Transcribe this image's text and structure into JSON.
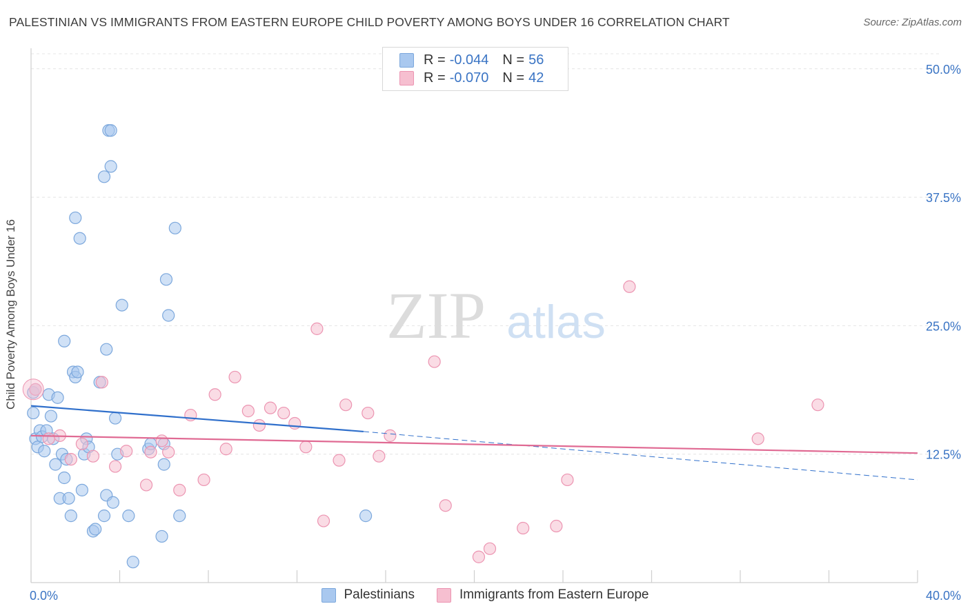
{
  "title": "PALESTINIAN VS IMMIGRANTS FROM EASTERN EUROPE CHILD POVERTY AMONG BOYS UNDER 16 CORRELATION CHART",
  "source": "Source: ZipAtlas.com",
  "watermark": {
    "zip": "ZIP",
    "atlas": "atlas"
  },
  "colors": {
    "blue_fill": "#a9c8ef",
    "blue_stroke": "#7ba7dc",
    "blue_line": "#2f6fcb",
    "pink_fill": "#f6bfd0",
    "pink_stroke": "#ec94b1",
    "pink_line": "#e06a93",
    "tick_color": "#3a74c4"
  },
  "legend_top": [
    {
      "r_label": "R =",
      "r_value": "-0.044",
      "n_label": "N =",
      "n_value": "56",
      "color": "#a9c8ef"
    },
    {
      "r_label": "R =",
      "r_value": "-0.070",
      "n_label": "N =",
      "n_value": "42",
      "color": "#f6bfd0"
    }
  ],
  "chart_data": {
    "type": "scatter",
    "title": "PALESTINIAN VS IMMIGRANTS FROM EASTERN EUROPE CHILD POVERTY AMONG BOYS UNDER 16 CORRELATION CHART",
    "xlabel": "",
    "ylabel": "Child Poverty Among Boys Under 16",
    "xlim": [
      0,
      40
    ],
    "ylim": [
      0,
      52
    ],
    "x_tick_labels": [
      "0.0%",
      "40.0%"
    ],
    "y_ticks": [
      12.5,
      25.0,
      37.5,
      50.0
    ],
    "y_tick_labels": [
      "12.5%",
      "25.0%",
      "37.5%",
      "50.0%"
    ],
    "grid": true,
    "series": [
      {
        "name": "Palestinians",
        "trend": {
          "x": [
            0,
            15.0
          ],
          "y": [
            17.2,
            14.7
          ]
        },
        "trend_dashed": {
          "x": [
            15.0,
            40
          ],
          "y": [
            14.7,
            10.0
          ]
        },
        "points": [
          [
            0.1,
            18.5
          ],
          [
            0.1,
            16.5
          ],
          [
            0.2,
            14.0
          ],
          [
            0.3,
            13.2
          ],
          [
            0.4,
            14.8
          ],
          [
            0.5,
            14.2
          ],
          [
            0.6,
            12.8
          ],
          [
            0.7,
            14.8
          ],
          [
            0.8,
            18.3
          ],
          [
            0.9,
            16.2
          ],
          [
            1.0,
            14.0
          ],
          [
            1.1,
            11.5
          ],
          [
            1.2,
            18.0
          ],
          [
            1.3,
            8.2
          ],
          [
            1.4,
            12.5
          ],
          [
            1.5,
            10.2
          ],
          [
            1.5,
            23.5
          ],
          [
            1.6,
            12.0
          ],
          [
            1.7,
            8.2
          ],
          [
            1.8,
            6.5
          ],
          [
            1.9,
            20.5
          ],
          [
            2.0,
            20.0
          ],
          [
            2.0,
            35.5
          ],
          [
            2.1,
            20.5
          ],
          [
            2.2,
            33.5
          ],
          [
            2.3,
            9.0
          ],
          [
            2.4,
            12.5
          ],
          [
            2.5,
            14.0
          ],
          [
            2.6,
            13.2
          ],
          [
            2.8,
            5.0
          ],
          [
            2.9,
            5.2
          ],
          [
            3.1,
            19.5
          ],
          [
            3.3,
            39.5
          ],
          [
            3.3,
            6.5
          ],
          [
            3.4,
            8.5
          ],
          [
            3.4,
            22.7
          ],
          [
            3.6,
            40.5
          ],
          [
            3.5,
            44.0
          ],
          [
            3.6,
            44.0
          ],
          [
            3.7,
            7.8
          ],
          [
            3.8,
            16.0
          ],
          [
            3.9,
            12.5
          ],
          [
            4.1,
            27.0
          ],
          [
            4.4,
            6.5
          ],
          [
            4.6,
            2.0
          ],
          [
            5.3,
            13.0
          ],
          [
            5.4,
            13.5
          ],
          [
            5.9,
            4.5
          ],
          [
            6.0,
            13.5
          ],
          [
            6.0,
            11.5
          ],
          [
            6.1,
            29.5
          ],
          [
            6.2,
            26.0
          ],
          [
            6.5,
            34.5
          ],
          [
            6.7,
            6.5
          ],
          [
            15.1,
            6.5
          ],
          [
            0.2,
            18.8
          ]
        ]
      },
      {
        "name": "Immigrants from Eastern Europe",
        "trend": {
          "x": [
            0,
            40
          ],
          "y": [
            14.3,
            12.6
          ]
        },
        "points": [
          [
            0.2,
            18.8
          ],
          [
            0.8,
            14.0
          ],
          [
            1.3,
            14.3
          ],
          [
            1.8,
            12.0
          ],
          [
            2.3,
            13.5
          ],
          [
            2.8,
            12.3
          ],
          [
            3.2,
            19.5
          ],
          [
            3.8,
            11.3
          ],
          [
            4.3,
            12.8
          ],
          [
            5.2,
            9.5
          ],
          [
            5.4,
            12.7
          ],
          [
            5.9,
            13.8
          ],
          [
            6.2,
            12.7
          ],
          [
            6.7,
            9.0
          ],
          [
            7.2,
            16.3
          ],
          [
            7.8,
            10.0
          ],
          [
            8.3,
            18.3
          ],
          [
            8.8,
            13.0
          ],
          [
            9.2,
            20.0
          ],
          [
            9.8,
            16.7
          ],
          [
            10.3,
            15.3
          ],
          [
            10.8,
            17.0
          ],
          [
            11.4,
            16.5
          ],
          [
            11.9,
            15.5
          ],
          [
            12.4,
            13.2
          ],
          [
            12.9,
            24.7
          ],
          [
            13.2,
            6.0
          ],
          [
            13.9,
            11.9
          ],
          [
            14.2,
            17.3
          ],
          [
            15.2,
            16.5
          ],
          [
            15.7,
            12.3
          ],
          [
            16.2,
            14.3
          ],
          [
            18.2,
            21.5
          ],
          [
            18.7,
            7.5
          ],
          [
            20.2,
            2.5
          ],
          [
            20.7,
            3.3
          ],
          [
            22.2,
            5.3
          ],
          [
            23.7,
            5.5
          ],
          [
            24.2,
            10.0
          ],
          [
            27.0,
            28.8
          ],
          [
            32.8,
            14.0
          ],
          [
            35.5,
            17.3
          ]
        ]
      }
    ],
    "legend": [
      "Palestinians",
      "Immigrants from Eastern Europe"
    ],
    "legend_position": "bottom-center"
  }
}
